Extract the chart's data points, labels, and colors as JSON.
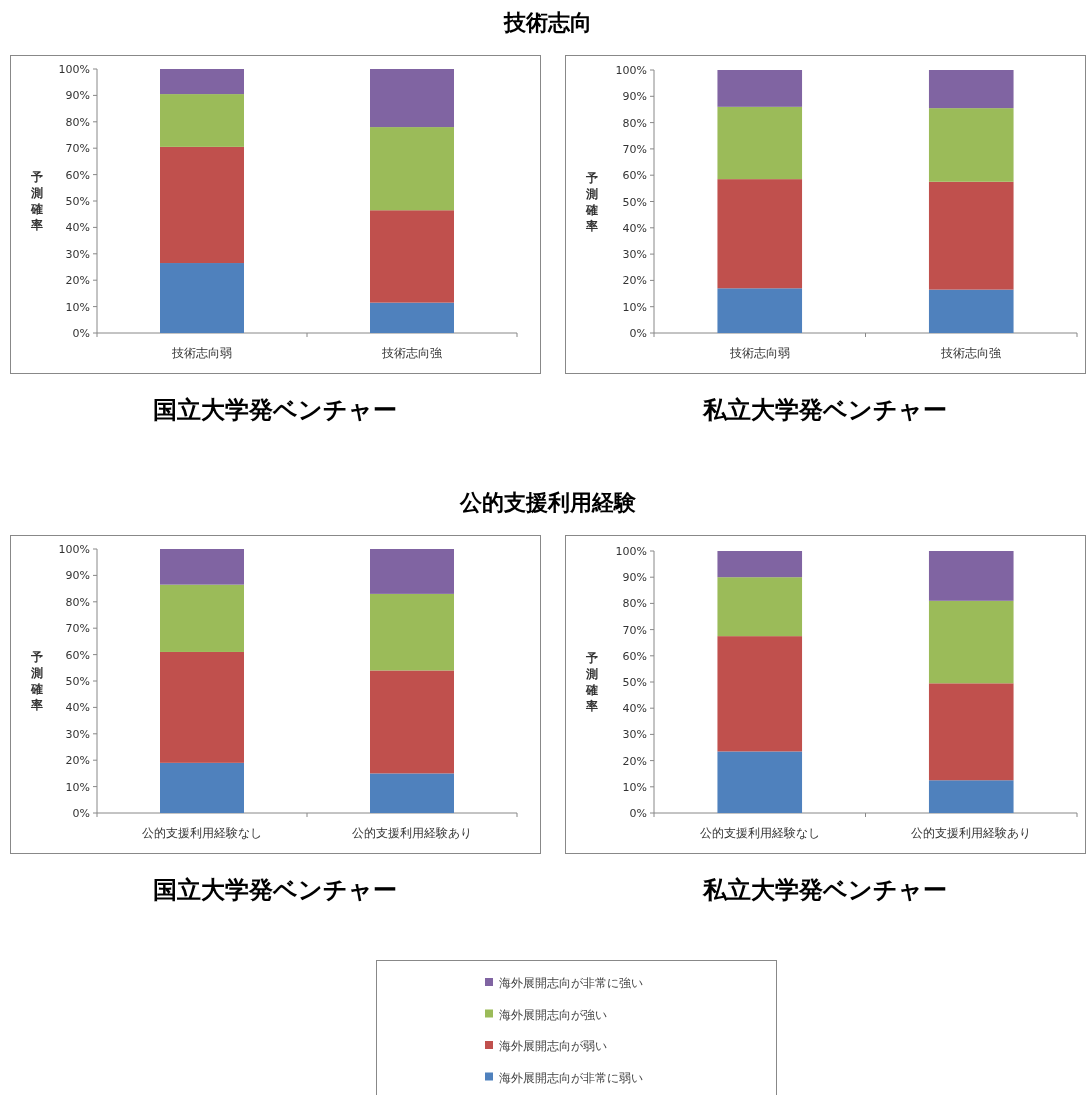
{
  "chart_data": [
    {
      "type": "bar",
      "stacked": true,
      "title": "技術志向",
      "subtitle": "国立大学発ベンチャー",
      "ylabel": "予測確率",
      "categories": [
        "技術志向弱",
        "技術志向強"
      ],
      "ylim": [
        0,
        100
      ],
      "yticks": [
        {
          "value": 0,
          "label": "0%"
        },
        {
          "value": 10,
          "label": "10%"
        },
        {
          "value": 20,
          "label": "20%"
        },
        {
          "value": 30,
          "label": "30%"
        },
        {
          "value": 40,
          "label": "40%"
        },
        {
          "value": 50,
          "label": "50%"
        },
        {
          "value": 60,
          "label": "60%"
        },
        {
          "value": 70,
          "label": "70%"
        },
        {
          "value": 80,
          "label": "80%"
        },
        {
          "value": 90,
          "label": "90%"
        },
        {
          "value": 100,
          "label": "100%"
        }
      ],
      "series": [
        {
          "color": "#4f81bd",
          "values": [
            26.5,
            11.5
          ]
        },
        {
          "color": "#c0504d",
          "values": [
            44,
            35
          ]
        },
        {
          "color": "#9bbb59",
          "values": [
            20,
            31.5
          ]
        },
        {
          "color": "#8064a2",
          "values": [
            9.5,
            22
          ]
        }
      ]
    },
    {
      "type": "bar",
      "stacked": true,
      "subtitle": "私立大学発ベンチャー",
      "ylabel": "予測確率",
      "categories": [
        "技術志向弱",
        "技術志向強"
      ],
      "ylim": [
        0,
        100
      ],
      "yticks": [
        {
          "value": 0,
          "label": "0%"
        },
        {
          "value": 10,
          "label": "10%"
        },
        {
          "value": 20,
          "label": "20%"
        },
        {
          "value": 30,
          "label": "30%"
        },
        {
          "value": 40,
          "label": "40%"
        },
        {
          "value": 50,
          "label": "50%"
        },
        {
          "value": 60,
          "label": "60%"
        },
        {
          "value": 70,
          "label": "70%"
        },
        {
          "value": 80,
          "label": "80%"
        },
        {
          "value": 90,
          "label": "90%"
        },
        {
          "value": 100,
          "label": "100%"
        }
      ],
      "series": [
        {
          "color": "#4f81bd",
          "values": [
            17,
            16.5
          ]
        },
        {
          "color": "#c0504d",
          "values": [
            41.5,
            41
          ]
        },
        {
          "color": "#9bbb59",
          "values": [
            27.5,
            28
          ]
        },
        {
          "color": "#8064a2",
          "values": [
            14,
            14.5
          ]
        }
      ]
    },
    {
      "type": "bar",
      "stacked": true,
      "title": "公的支援利用経験",
      "subtitle": "国立大学発ベンチャー",
      "ylabel": "予測確率",
      "categories": [
        "公的支援利用経験なし",
        "公的支援利用経験あり"
      ],
      "ylim": [
        0,
        100
      ],
      "yticks": [
        {
          "value": 0,
          "label": "0%"
        },
        {
          "value": 10,
          "label": "10%"
        },
        {
          "value": 20,
          "label": "20%"
        },
        {
          "value": 30,
          "label": "30%"
        },
        {
          "value": 40,
          "label": "40%"
        },
        {
          "value": 50,
          "label": "50%"
        },
        {
          "value": 60,
          "label": "60%"
        },
        {
          "value": 70,
          "label": "70%"
        },
        {
          "value": 80,
          "label": "80%"
        },
        {
          "value": 90,
          "label": "90%"
        },
        {
          "value": 100,
          "label": "100%"
        }
      ],
      "series": [
        {
          "color": "#4f81bd",
          "values": [
            19,
            15
          ]
        },
        {
          "color": "#c0504d",
          "values": [
            42,
            39
          ]
        },
        {
          "color": "#9bbb59",
          "values": [
            25.5,
            29
          ]
        },
        {
          "color": "#8064a2",
          "values": [
            13.5,
            17
          ]
        }
      ]
    },
    {
      "type": "bar",
      "stacked": true,
      "subtitle": "私立大学発ベンチャー",
      "ylabel": "予測確率",
      "categories": [
        "公的支援利用経験なし",
        "公的支援利用経験あり"
      ],
      "ylim": [
        0,
        100
      ],
      "yticks": [
        {
          "value": 0,
          "label": "0%"
        },
        {
          "value": 10,
          "label": "10%"
        },
        {
          "value": 20,
          "label": "20%"
        },
        {
          "value": 30,
          "label": "30%"
        },
        {
          "value": 40,
          "label": "40%"
        },
        {
          "value": 50,
          "label": "50%"
        },
        {
          "value": 60,
          "label": "60%"
        },
        {
          "value": 70,
          "label": "70%"
        },
        {
          "value": 80,
          "label": "80%"
        },
        {
          "value": 90,
          "label": "90%"
        },
        {
          "value": 100,
          "label": "100%"
        }
      ],
      "legend": "bottom",
      "series": [
        {
          "name": "海外展開志向が非常に弱い",
          "color": "#4f81bd",
          "values": [
            23.5,
            12.5
          ]
        },
        {
          "name": "海外展開志向が弱い",
          "color": "#c0504d",
          "values": [
            44,
            37
          ]
        },
        {
          "name": "海外展開志向が強い",
          "color": "#9bbb59",
          "values": [
            22.5,
            31.5
          ]
        },
        {
          "name": "海外展開志向が非常に強い",
          "color": "#8064a2",
          "values": [
            10,
            19
          ]
        }
      ]
    }
  ]
}
